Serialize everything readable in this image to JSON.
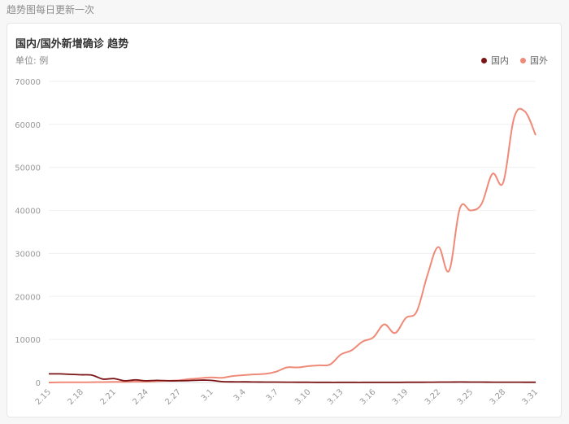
{
  "header": {
    "note": "趋势图每日更新一次"
  },
  "card": {
    "title": "国内/国外新增确诊 趋势",
    "unit": "单位: 例"
  },
  "colors": {
    "domestic": "#7a1416",
    "foreign": "#f08a78",
    "grid": "#efefef",
    "axis_text": "#999999"
  },
  "chart_data": {
    "type": "line",
    "title": "国内/国外新增确诊 趋势",
    "ylabel": "单位: 例",
    "ylim": [
      0,
      70000
    ],
    "yticks": [
      0,
      10000,
      20000,
      30000,
      40000,
      50000,
      60000,
      70000
    ],
    "x_tick_labels": [
      "2.15",
      "2.18",
      "2.21",
      "2.24",
      "2.27",
      "3.1",
      "3.4",
      "3.7",
      "3.10",
      "3.13",
      "3.16",
      "3.19",
      "3.22",
      "3.25",
      "3.28",
      "3.31"
    ],
    "x": [
      "2.15",
      "2.16",
      "2.17",
      "2.18",
      "2.19",
      "2.20",
      "2.21",
      "2.22",
      "2.23",
      "2.24",
      "2.25",
      "2.26",
      "2.27",
      "2.28",
      "2.29",
      "3.1",
      "3.2",
      "3.3",
      "3.4",
      "3.5",
      "3.6",
      "3.7",
      "3.8",
      "3.9",
      "3.10",
      "3.11",
      "3.12",
      "3.13",
      "3.14",
      "3.15",
      "3.16",
      "3.17",
      "3.18",
      "3.19",
      "3.20",
      "3.21",
      "3.22",
      "3.23",
      "3.24",
      "3.25",
      "3.26",
      "3.27",
      "3.28",
      "3.29",
      "3.30",
      "3.31"
    ],
    "legend_position": "top-right",
    "grid": true,
    "series": [
      {
        "name": "国内",
        "color": "#7a1416",
        "values": [
          2000,
          2000,
          1900,
          1800,
          1700,
          800,
          900,
          400,
          600,
          400,
          500,
          400,
          400,
          450,
          550,
          500,
          200,
          150,
          150,
          120,
          100,
          100,
          80,
          60,
          50,
          40,
          30,
          30,
          30,
          30,
          40,
          40,
          40,
          50,
          60,
          70,
          90,
          100,
          110,
          100,
          90,
          80,
          80,
          70,
          60,
          50
        ]
      },
      {
        "name": "国外",
        "color": "#f08a78",
        "values": [
          0,
          50,
          50,
          60,
          70,
          100,
          150,
          150,
          200,
          200,
          300,
          400,
          500,
          800,
          1000,
          1200,
          1100,
          1500,
          1700,
          1900,
          2000,
          2500,
          3500,
          3500,
          3800,
          4000,
          4200,
          6500,
          7500,
          9500,
          10500,
          13500,
          11500,
          15000,
          16500,
          25000,
          31500,
          26000,
          40500,
          40000,
          41500,
          48500,
          46500,
          61500,
          63000,
          57500
        ]
      }
    ]
  }
}
